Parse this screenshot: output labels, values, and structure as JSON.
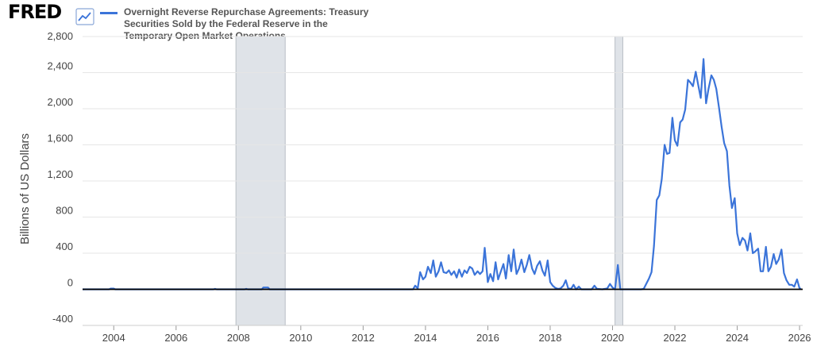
{
  "logo": {
    "text": "FRED",
    "icon": "line-chart-icon"
  },
  "colors": {
    "series": "#3b74d9",
    "recession": "#dfe3e8",
    "recession_edge": "#b9bec5",
    "zero_line": "#000000",
    "grid": "#e6e6e6",
    "background": "#ffffff"
  },
  "chart_data": {
    "type": "line",
    "title": "Overnight Reverse Repurchase Agreements: Treasury Securities Sold by the Federal Reserve in the Temporary Open Market Operations",
    "title_lines": [
      "Overnight Reverse Repurchase Agreements: Treasury",
      "Securities Sold by the Federal Reserve in the",
      "Temporary Open Market Operations"
    ],
    "ylabel": "Billions of US Dollars",
    "xlabel": "",
    "ylim": [
      -400,
      2800
    ],
    "xlim": [
      2003.0,
      2026.1
    ],
    "yticks": [
      -400,
      0,
      400,
      800,
      1200,
      1600,
      2000,
      2400,
      2800
    ],
    "ytick_labels": [
      "-400",
      "0",
      "400",
      "800",
      "1,200",
      "1,600",
      "2,000",
      "2,400",
      "2,800"
    ],
    "xticks": [
      2004,
      2006,
      2008,
      2010,
      2012,
      2014,
      2016,
      2018,
      2020,
      2022,
      2024,
      2026
    ],
    "xtick_labels": [
      "2004",
      "2006",
      "2008",
      "2010",
      "2012",
      "2014",
      "2016",
      "2018",
      "2020",
      "2022",
      "2024",
      "2026"
    ],
    "grid": true,
    "recessions": [
      {
        "start": 2007.92,
        "end": 2009.5
      },
      {
        "start": 2020.08,
        "end": 2020.33
      }
    ],
    "series": [
      {
        "name": "Overnight Reverse Repurchase Agreements: Treasury Securities Sold by the Federal Reserve in the Temporary Open Market Operations",
        "points": [
          [
            2003.0,
            0
          ],
          [
            2003.85,
            0
          ],
          [
            2003.9,
            8
          ],
          [
            2004.0,
            8
          ],
          [
            2004.05,
            0
          ],
          [
            2007.2,
            0
          ],
          [
            2007.25,
            5
          ],
          [
            2007.3,
            0
          ],
          [
            2008.2,
            0
          ],
          [
            2008.25,
            5
          ],
          [
            2008.3,
            0
          ],
          [
            2008.75,
            0
          ],
          [
            2008.8,
            20
          ],
          [
            2008.95,
            20
          ],
          [
            2009.0,
            0
          ],
          [
            2013.6,
            0
          ],
          [
            2013.67,
            40
          ],
          [
            2013.75,
            10
          ],
          [
            2013.83,
            190
          ],
          [
            2013.92,
            110
          ],
          [
            2014.0,
            140
          ],
          [
            2014.08,
            250
          ],
          [
            2014.17,
            180
          ],
          [
            2014.25,
            320
          ],
          [
            2014.33,
            140
          ],
          [
            2014.42,
            200
          ],
          [
            2014.5,
            300
          ],
          [
            2014.58,
            190
          ],
          [
            2014.67,
            180
          ],
          [
            2014.75,
            210
          ],
          [
            2014.83,
            160
          ],
          [
            2014.92,
            200
          ],
          [
            2015.0,
            130
          ],
          [
            2015.08,
            220
          ],
          [
            2015.17,
            140
          ],
          [
            2015.25,
            210
          ],
          [
            2015.33,
            180
          ],
          [
            2015.42,
            250
          ],
          [
            2015.5,
            230
          ],
          [
            2015.58,
            160
          ],
          [
            2015.67,
            200
          ],
          [
            2015.75,
            170
          ],
          [
            2015.83,
            200
          ],
          [
            2015.9,
            460
          ],
          [
            2016.0,
            80
          ],
          [
            2016.08,
            170
          ],
          [
            2016.17,
            90
          ],
          [
            2016.25,
            300
          ],
          [
            2016.33,
            110
          ],
          [
            2016.42,
            200
          ],
          [
            2016.5,
            280
          ],
          [
            2016.58,
            120
          ],
          [
            2016.67,
            380
          ],
          [
            2016.75,
            200
          ],
          [
            2016.83,
            440
          ],
          [
            2016.92,
            170
          ],
          [
            2017.0,
            230
          ],
          [
            2017.08,
            330
          ],
          [
            2017.17,
            190
          ],
          [
            2017.25,
            270
          ],
          [
            2017.33,
            380
          ],
          [
            2017.42,
            230
          ],
          [
            2017.5,
            170
          ],
          [
            2017.58,
            260
          ],
          [
            2017.67,
            310
          ],
          [
            2017.75,
            210
          ],
          [
            2017.83,
            150
          ],
          [
            2017.92,
            320
          ],
          [
            2018.0,
            80
          ],
          [
            2018.08,
            40
          ],
          [
            2018.17,
            15
          ],
          [
            2018.25,
            5
          ],
          [
            2018.33,
            10
          ],
          [
            2018.42,
            40
          ],
          [
            2018.5,
            100
          ],
          [
            2018.58,
            10
          ],
          [
            2018.67,
            5
          ],
          [
            2018.75,
            50
          ],
          [
            2018.83,
            0
          ],
          [
            2018.92,
            30
          ],
          [
            2019.0,
            0
          ],
          [
            2019.2,
            0
          ],
          [
            2019.33,
            0
          ],
          [
            2019.42,
            40
          ],
          [
            2019.5,
            5
          ],
          [
            2019.67,
            0
          ],
          [
            2019.83,
            10
          ],
          [
            2019.92,
            60
          ],
          [
            2020.0,
            20
          ],
          [
            2020.08,
            0
          ],
          [
            2020.17,
            270
          ],
          [
            2020.25,
            0
          ],
          [
            2020.5,
            0
          ],
          [
            2020.75,
            0
          ],
          [
            2020.92,
            0
          ],
          [
            2021.0,
            5
          ],
          [
            2021.17,
            120
          ],
          [
            2021.25,
            190
          ],
          [
            2021.33,
            480
          ],
          [
            2021.42,
            990
          ],
          [
            2021.5,
            1040
          ],
          [
            2021.58,
            1220
          ],
          [
            2021.67,
            1600
          ],
          [
            2021.75,
            1500
          ],
          [
            2021.83,
            1510
          ],
          [
            2021.92,
            1900
          ],
          [
            2022.0,
            1650
          ],
          [
            2022.08,
            1590
          ],
          [
            2022.17,
            1850
          ],
          [
            2022.25,
            1880
          ],
          [
            2022.33,
            1990
          ],
          [
            2022.42,
            2320
          ],
          [
            2022.5,
            2290
          ],
          [
            2022.58,
            2250
          ],
          [
            2022.67,
            2410
          ],
          [
            2022.75,
            2260
          ],
          [
            2022.83,
            2120
          ],
          [
            2022.92,
            2550
          ],
          [
            2023.0,
            2060
          ],
          [
            2023.08,
            2220
          ],
          [
            2023.17,
            2370
          ],
          [
            2023.25,
            2320
          ],
          [
            2023.33,
            2220
          ],
          [
            2023.42,
            2000
          ],
          [
            2023.5,
            1800
          ],
          [
            2023.58,
            1620
          ],
          [
            2023.67,
            1530
          ],
          [
            2023.75,
            1150
          ],
          [
            2023.83,
            900
          ],
          [
            2023.92,
            1010
          ],
          [
            2024.0,
            620
          ],
          [
            2024.08,
            490
          ],
          [
            2024.17,
            570
          ],
          [
            2024.25,
            540
          ],
          [
            2024.33,
            430
          ],
          [
            2024.42,
            620
          ],
          [
            2024.5,
            400
          ],
          [
            2024.58,
            420
          ],
          [
            2024.67,
            450
          ],
          [
            2024.75,
            200
          ],
          [
            2024.83,
            200
          ],
          [
            2024.92,
            470
          ],
          [
            2025.0,
            200
          ],
          [
            2025.08,
            250
          ],
          [
            2025.17,
            390
          ],
          [
            2025.25,
            280
          ],
          [
            2025.33,
            330
          ],
          [
            2025.42,
            440
          ],
          [
            2025.5,
            180
          ],
          [
            2025.58,
            100
          ],
          [
            2025.67,
            50
          ],
          [
            2025.75,
            50
          ],
          [
            2025.83,
            30
          ],
          [
            2025.92,
            110
          ],
          [
            2026.0,
            10
          ],
          [
            2026.05,
            5
          ]
        ]
      }
    ]
  }
}
